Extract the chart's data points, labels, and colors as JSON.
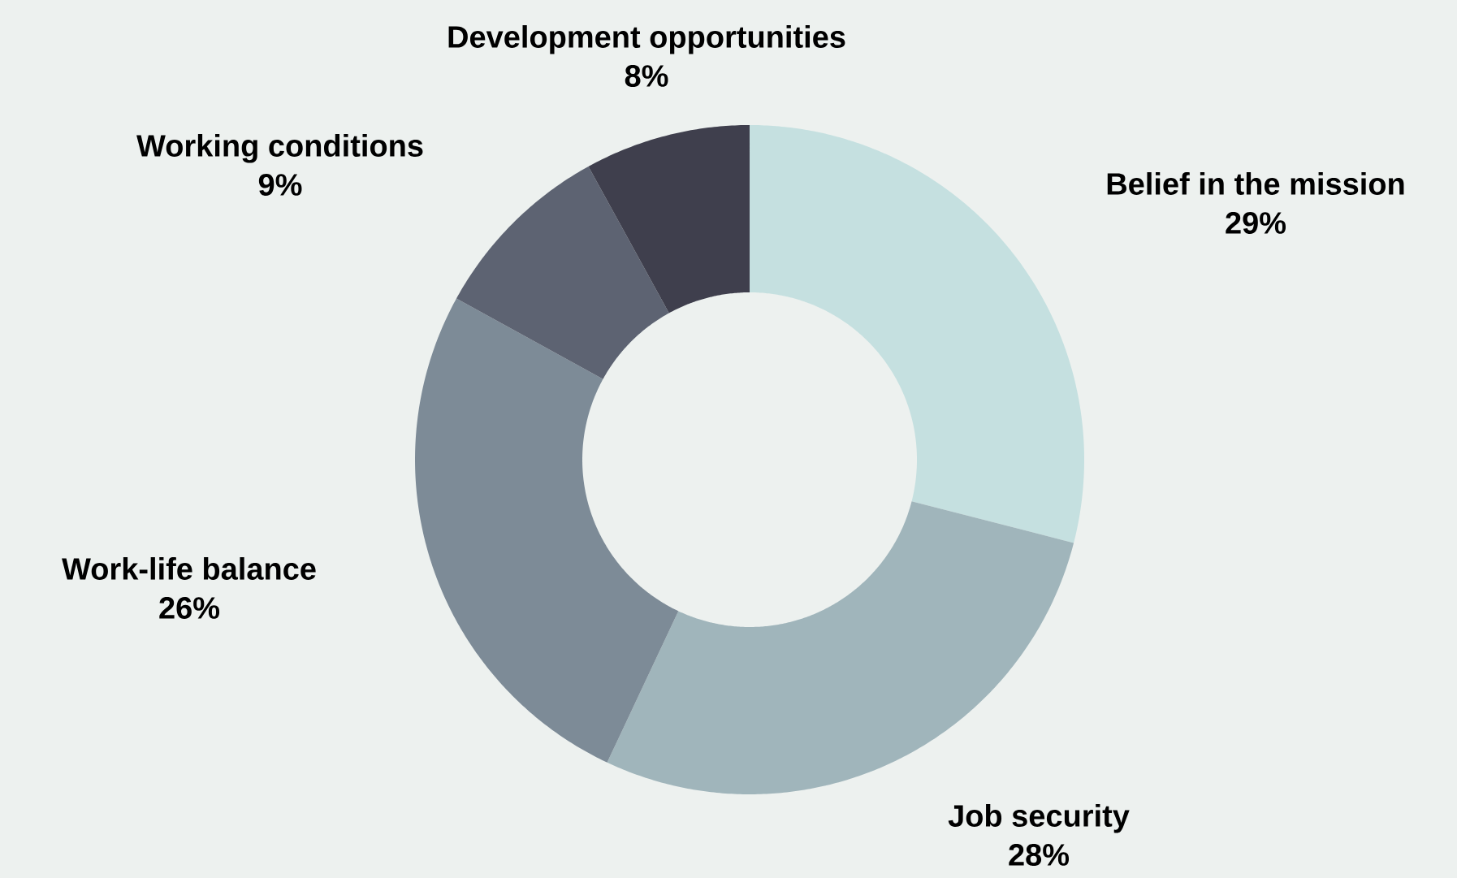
{
  "chart_data": {
    "type": "donut",
    "categories": [
      "Belief in the mission",
      "Job security",
      "Work-life balance",
      "Working conditions",
      "Development opportunities"
    ],
    "values": [
      29,
      28,
      26,
      9,
      8
    ],
    "value_labels": [
      "29%",
      "28%",
      "26%",
      "9%",
      "8%"
    ],
    "colors": [
      "#c5e0e0",
      "#a0b5bb",
      "#7d8b97",
      "#5d6372",
      "#3f3f4d"
    ]
  }
}
